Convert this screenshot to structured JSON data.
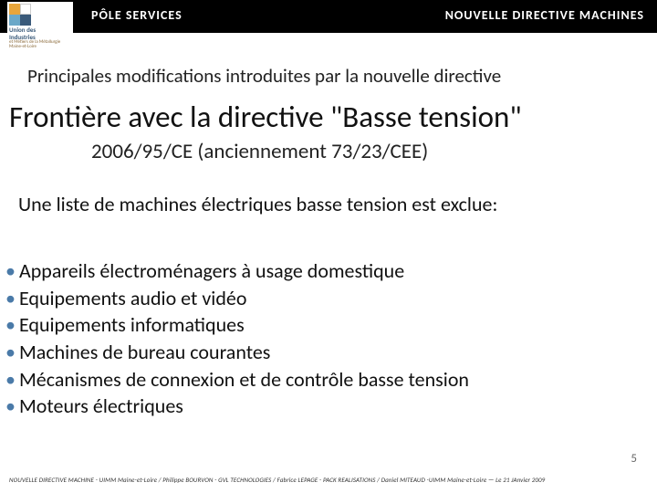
{
  "header": {
    "left": "PÔLE  SERVICES",
    "right": "NOUVELLE  DIRECTIVE  MACHINES"
  },
  "logo": {
    "line1": "Union des",
    "line2": "Industries",
    "line3": "et Métiers de la Métallurgie",
    "line4": "Maine-et-Loire",
    "colors": {
      "tl": "#e8a53a",
      "tr": "#ffffff",
      "bl": "#6aa8c8",
      "br": "#3a5a7a"
    }
  },
  "subtitle": "Principales modifications introduites par la nouvelle directive",
  "title": "Frontière avec la directive \"Basse tension\"",
  "title_sub": "2006/95/CE (anciennement 73/23/CEE)",
  "intro": "Une liste de machines électriques basse tension est exclue:",
  "bullets": [
    "Appareils électroménagers à usage domestique",
    "Equipements audio et vidéo",
    "Equipements informatiques",
    "Machines de bureau courantes",
    "Mécanismes de connexion et de contrôle basse tension",
    "Moteurs électriques"
  ],
  "page_number": "5",
  "footer": "NOUVELLE DIRECTIVE MACHINE - UIMM Maine-et-Loire /  Philippe BOURVON - GVL TECHNOLOGIES /  Fabrice LEPAGE - PACK REALISATIONS /  Daniel MITEAUD -UIMM Maine-et-Loire — Le 21 JAnvier 2009",
  "colors": {
    "header_bg": "#000000",
    "header_text": "#ffffff",
    "bullet_marker": "#4a7aa8",
    "body_text": "#111111",
    "page_bg": "#ffffff"
  }
}
